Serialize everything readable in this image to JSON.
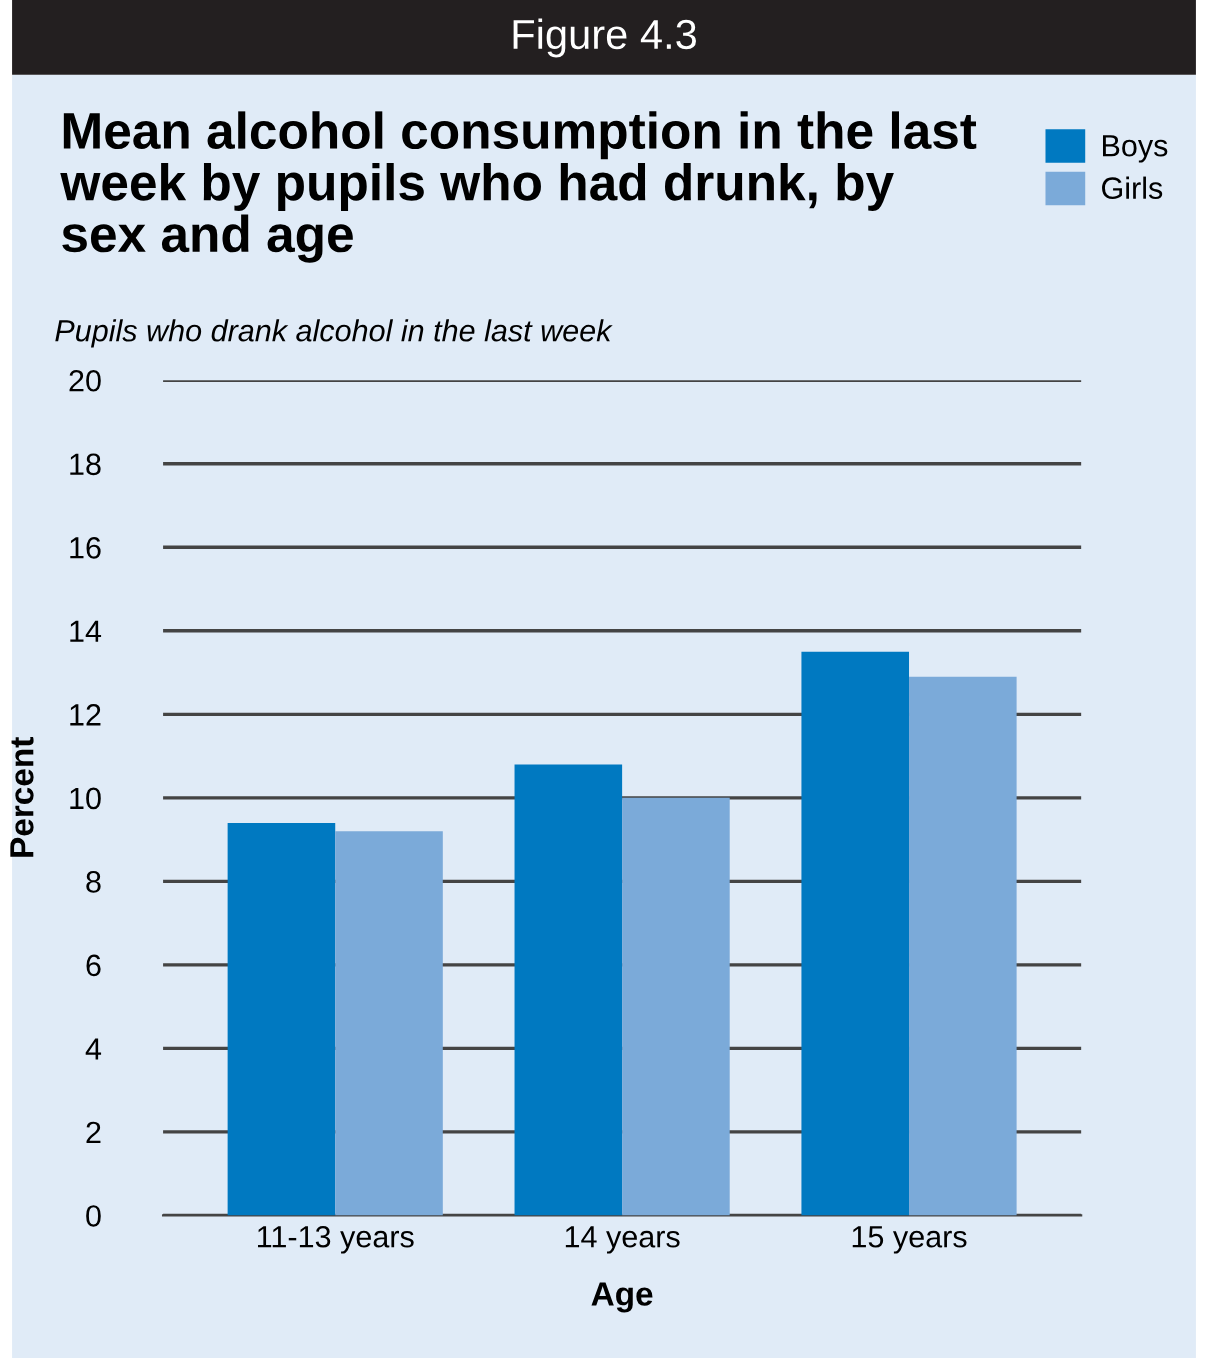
{
  "chart_data": {
    "type": "bar",
    "title": "Mean alcohol consumption in the last week by pupils who had drunk, by sex and age",
    "subtitle": "Pupils who drank alcohol in the last week",
    "annotations": [
      "Figure 4.3"
    ],
    "xlabel": "Age",
    "ylabel": "Percent",
    "categories": [
      "11-13 years",
      "14 years",
      "15 years"
    ],
    "series": [
      {
        "name": "Boys",
        "color": "#0079c1",
        "values": [
          9.4,
          10.8,
          13.5
        ]
      },
      {
        "name": "Girls",
        "color": "#7baad9",
        "values": [
          9.2,
          10.0,
          12.9
        ]
      }
    ],
    "ylim": [
      0,
      20
    ],
    "yticks": [
      0,
      2,
      4,
      6,
      8,
      10,
      12,
      14,
      16,
      18,
      20
    ],
    "grid": "y",
    "legend": "top right"
  }
}
